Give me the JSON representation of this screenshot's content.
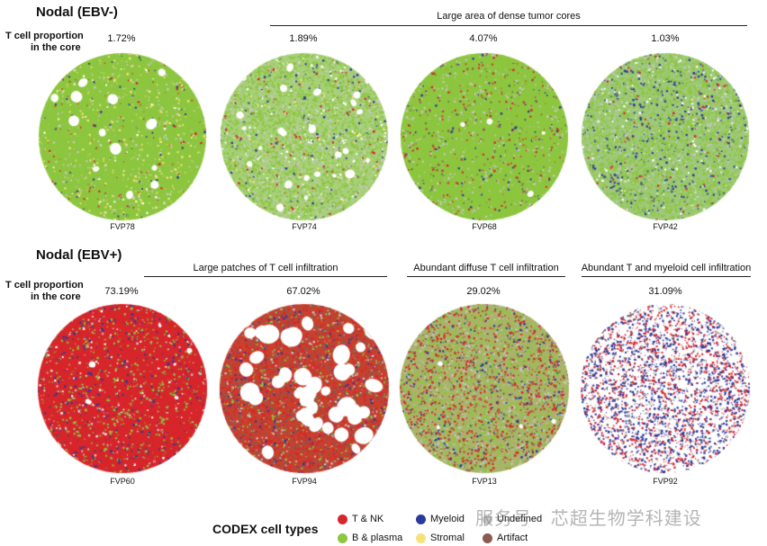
{
  "panels": [
    {
      "title": "Nodal (EBV-)",
      "row_label_line1": "T cell proportion",
      "row_label_line2": "in the core",
      "groups": [
        {
          "label": "Large area of dense tumor cores"
        }
      ],
      "cores": [
        {
          "sample": "FVP78",
          "t_cell_pct": "1.72%",
          "palette": "green_mixed"
        },
        {
          "sample": "FVP74",
          "t_cell_pct": "1.89%",
          "palette": "green_holes"
        },
        {
          "sample": "FVP68",
          "t_cell_pct": "4.07%",
          "palette": "green_dense"
        },
        {
          "sample": "FVP42",
          "t_cell_pct": "1.03%",
          "palette": "green_fine"
        }
      ]
    },
    {
      "title": "Nodal (EBV+)",
      "row_label_line1": "T cell proportion",
      "row_label_line2": "in the core",
      "groups": [
        {
          "label": "Large patches of T cell infiltration"
        },
        {
          "label": "Abundant diffuse T cell infiltration"
        },
        {
          "label": "Abundant T and myeloid cell infiltration"
        }
      ],
      "cores": [
        {
          "sample": "FVP60",
          "t_cell_pct": "73.19%",
          "palette": "red_dense"
        },
        {
          "sample": "FVP94",
          "t_cell_pct": "67.02%",
          "palette": "red_holes"
        },
        {
          "sample": "FVP13",
          "t_cell_pct": "29.02%",
          "palette": "mixed_diffuse"
        },
        {
          "sample": "FVP92",
          "t_cell_pct": "31.09%",
          "palette": "blue_red"
        }
      ]
    }
  ],
  "legend": {
    "title": "CODEX cell types",
    "items": [
      {
        "label": "T & NK",
        "color": "#d7262b"
      },
      {
        "label": "B & plasma",
        "color": "#8dc63f"
      },
      {
        "label": "Myeloid",
        "color": "#2a3a9b"
      },
      {
        "label": "Stromal",
        "color": "#f6e27a"
      },
      {
        "label": "Undefined",
        "color": "#c8c8c8"
      },
      {
        "label": "Artifact",
        "color": "#8b5a52"
      }
    ]
  },
  "watermark": "服务号 · 芯超生物学科建设"
}
